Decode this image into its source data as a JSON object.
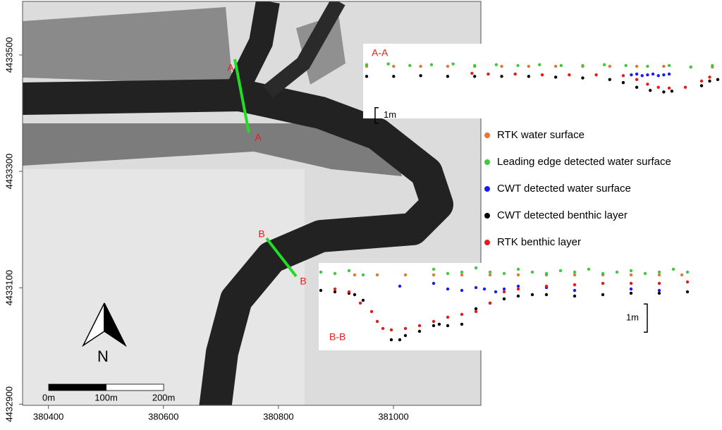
{
  "map": {
    "xlim": [
      380355,
      381152
    ],
    "ylim": [
      4432898,
      4433592
    ],
    "xticks": [
      380400,
      380600,
      380800,
      381000
    ],
    "yticks": [
      4433500,
      4433300,
      4433100,
      4432900
    ],
    "section_labels": [
      "A",
      "A",
      "B",
      "B"
    ],
    "north": "N",
    "scale_bar": [
      {
        "value": 0,
        "label": "0m"
      },
      {
        "value": 100,
        "label": "100m"
      },
      {
        "value": 200,
        "label": "200m"
      }
    ]
  },
  "profiles": [
    {
      "title": "A-A",
      "xlim": [
        0,
        130
      ],
      "ylim": [
        -0.8,
        4.0
      ],
      "scale": {
        "value": 1,
        "label": "1m"
      },
      "series": [
        {
          "name": "RTK water surface",
          "color": "#e8762c",
          "x": [
            0,
            10,
            20,
            30,
            40,
            50,
            60,
            70,
            80,
            90,
            100,
            110,
            120,
            128
          ],
          "y": [
            2.55,
            2.55,
            2.55,
            2.55,
            2.55,
            2.55,
            2.55,
            2.55,
            2.55,
            2.55,
            2.55,
            2.55,
            2.5,
            2.5
          ]
        },
        {
          "name": "Leading edge detected water surface",
          "color": "#3ec93e",
          "x": [
            0,
            8,
            16,
            24,
            32,
            40,
            48,
            56,
            64,
            72,
            80,
            88,
            96,
            104,
            112,
            120,
            128
          ],
          "y": [
            2.65,
            2.7,
            2.6,
            2.65,
            2.7,
            2.6,
            2.65,
            2.6,
            2.65,
            2.6,
            2.6,
            2.65,
            2.6,
            2.55,
            2.6,
            2.5,
            2.6
          ]
        },
        {
          "name": "CWT detected water surface",
          "color": "#1a1aff",
          "x": [
            98,
            100,
            102,
            104,
            106,
            108,
            110,
            112
          ],
          "y": [
            2.0,
            2.05,
            1.95,
            2.0,
            2.05,
            1.95,
            2.0,
            2.05
          ]
        },
        {
          "name": "CWT detected benthic layer",
          "color": "#000000",
          "x": [
            0,
            10,
            20,
            30,
            40,
            50,
            60,
            70,
            80,
            90,
            95,
            100,
            105,
            110,
            113,
            124,
            127,
            130
          ],
          "y": [
            1.9,
            1.9,
            1.95,
            1.9,
            1.9,
            1.9,
            1.9,
            1.85,
            1.8,
            1.7,
            1.5,
            1.2,
            1.0,
            0.9,
            0.95,
            1.3,
            1.6,
            1.7
          ]
        },
        {
          "name": "RTK benthic layer",
          "color": "#e81a1a",
          "x": [
            39,
            45,
            55,
            65,
            75,
            85,
            95,
            100,
            104,
            108,
            112,
            118,
            124,
            127
          ],
          "y": [
            2.1,
            2.05,
            2.05,
            2.0,
            2.0,
            2.0,
            1.95,
            1.7,
            1.4,
            1.2,
            1.15,
            1.2,
            1.6,
            1.85
          ]
        }
      ]
    },
    {
      "title": "B-B",
      "xlim": [
        0,
        130
      ],
      "ylim": [
        -0.175,
        2.925
      ],
      "scale": {
        "value": 1,
        "label": "1m"
      },
      "series": [
        {
          "name": "RTK water surface",
          "color": "#e8762c",
          "x": [
            12,
            20,
            30,
            40,
            50,
            60,
            70,
            80,
            90,
            100,
            110,
            120,
            128
          ],
          "y": [
            2.5,
            2.5,
            2.5,
            2.5,
            2.5,
            2.5,
            2.5,
            2.5,
            2.5,
            2.5,
            2.5,
            2.5,
            2.5
          ]
        },
        {
          "name": "Leading edge detected water surface",
          "color": "#3ec93e",
          "x": [
            0,
            5,
            10,
            15,
            40,
            45,
            50,
            55,
            60,
            65,
            70,
            75,
            80,
            85,
            90,
            95,
            100,
            105,
            110,
            115,
            120,
            125,
            130
          ],
          "y": [
            2.6,
            2.55,
            2.65,
            2.5,
            2.7,
            2.55,
            2.6,
            2.75,
            2.6,
            2.55,
            2.7,
            2.6,
            2.55,
            2.65,
            2.6,
            2.7,
            2.55,
            2.6,
            2.65,
            2.55,
            2.6,
            2.7,
            2.6
          ]
        },
        {
          "name": "CWT detected water surface",
          "color": "#1a1aff",
          "x": [
            28,
            40,
            45,
            50,
            55,
            58,
            62,
            65,
            70,
            80,
            90,
            110,
            120
          ],
          "y": [
            2.1,
            2.2,
            2.0,
            1.95,
            2.05,
            2.0,
            1.9,
            2.0,
            2.1,
            2.05,
            1.95,
            2.0,
            1.95
          ]
        },
        {
          "name": "CWT detected benthic layer",
          "color": "#000000",
          "x": [
            0,
            5,
            10,
            12,
            15,
            25,
            28,
            30,
            35,
            40,
            42,
            45,
            50,
            55,
            60,
            65,
            70,
            75,
            80,
            90,
            100,
            110,
            120,
            130
          ],
          "y": [
            1.95,
            1.9,
            1.85,
            1.8,
            1.6,
            0.2,
            0.2,
            0.35,
            0.5,
            0.7,
            0.75,
            0.7,
            0.75,
            1.3,
            1.5,
            1.65,
            1.75,
            1.8,
            1.8,
            1.75,
            1.8,
            1.85,
            1.85,
            1.9
          ]
        },
        {
          "name": "RTK benthic layer",
          "color": "#e81a1a",
          "x": [
            5,
            10,
            14,
            18,
            20,
            22,
            25,
            30,
            35,
            40,
            45,
            50,
            55,
            60,
            65,
            70,
            80,
            90,
            100,
            110,
            120,
            130
          ],
          "y": [
            2.0,
            1.9,
            1.5,
            1.2,
            0.85,
            0.6,
            0.55,
            0.6,
            0.7,
            0.85,
            1.0,
            1.1,
            1.2,
            1.5,
            1.9,
            2.0,
            2.1,
            2.15,
            2.2,
            2.2,
            2.2,
            2.25
          ]
        }
      ]
    }
  ]
}
